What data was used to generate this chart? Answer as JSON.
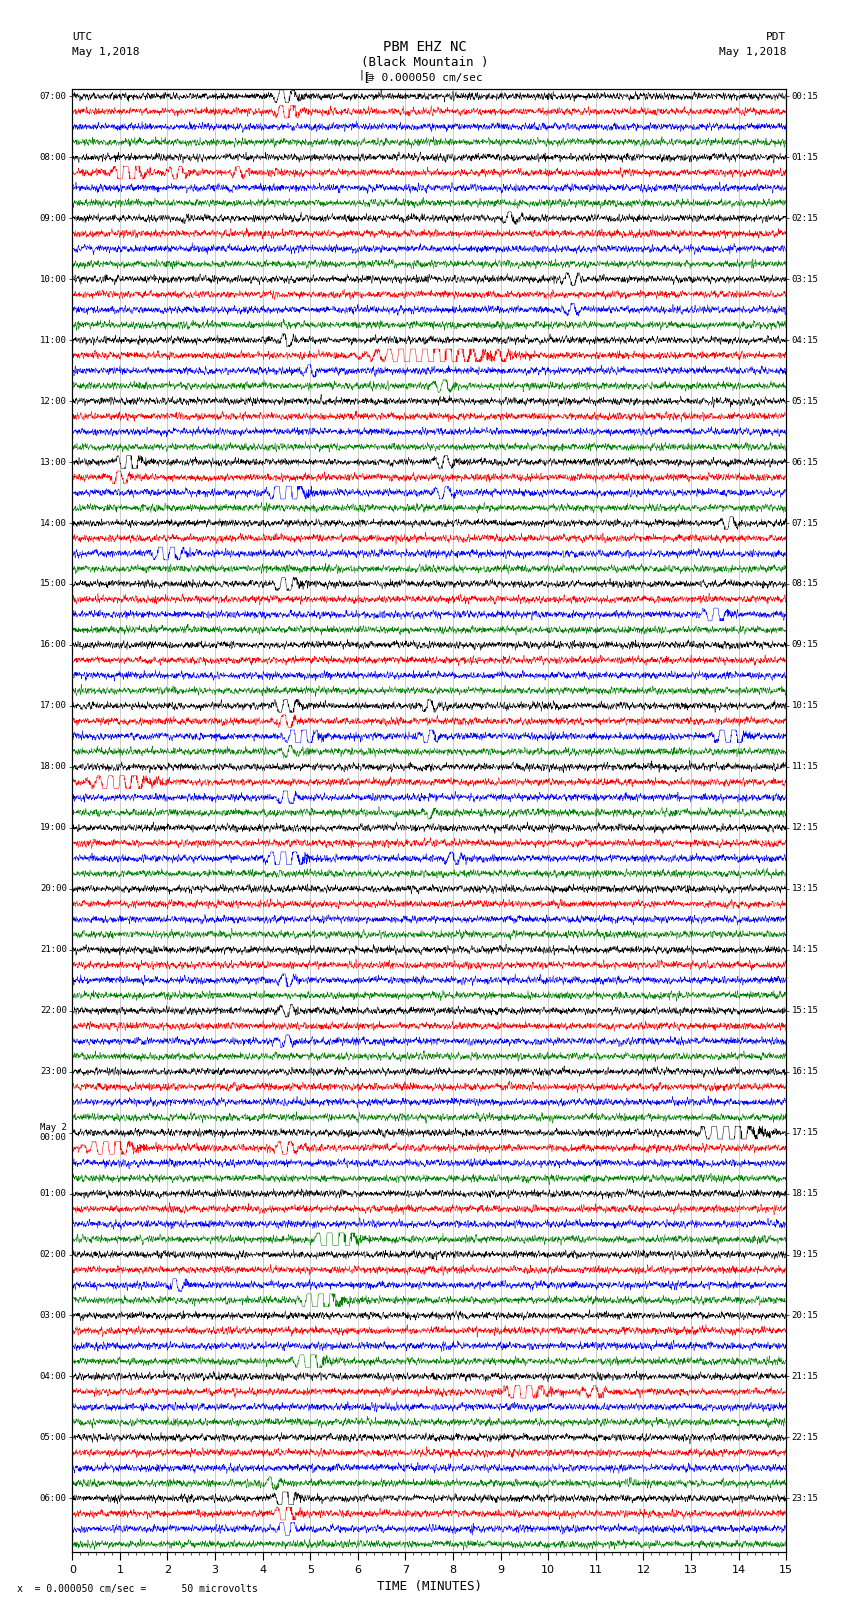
{
  "title_line1": "PBM EHZ NC",
  "title_line2": "(Black Mountain )",
  "scale_label": "= 0.000050 cm/sec",
  "left_label_top": "UTC",
  "left_label_date": "May 1,2018",
  "right_label_top": "PDT",
  "right_label_date": "May 1,2018",
  "bottom_label": "x  = 0.000050 cm/sec =      50 microvolts",
  "xlabel": "TIME (MINUTES)",
  "num_hour_rows": 24,
  "samples_per_row": 3000,
  "colors": [
    "black",
    "red",
    "blue",
    "green"
  ],
  "fig_width": 8.5,
  "fig_height": 16.13,
  "background_color": "white",
  "grid_color": "#999999",
  "left_time_labels": [
    "07:00",
    "08:00",
    "09:00",
    "10:00",
    "11:00",
    "12:00",
    "13:00",
    "14:00",
    "15:00",
    "16:00",
    "17:00",
    "18:00",
    "19:00",
    "20:00",
    "21:00",
    "22:00",
    "23:00",
    "May 2\n00:00",
    "01:00",
    "02:00",
    "03:00",
    "04:00",
    "05:00",
    "06:00"
  ],
  "right_time_labels": [
    "00:15",
    "01:15",
    "02:15",
    "03:15",
    "04:15",
    "05:15",
    "06:15",
    "07:15",
    "08:15",
    "09:15",
    "10:15",
    "11:15",
    "12:15",
    "13:15",
    "14:15",
    "15:15",
    "16:15",
    "17:15",
    "18:15",
    "19:15",
    "20:15",
    "21:15",
    "22:15",
    "23:15"
  ],
  "events": [
    {
      "hour": 4,
      "color_idx": 1,
      "minute": 9.5,
      "amplitude": 3.0,
      "duration": 0.6
    },
    {
      "hour": 4,
      "color_idx": 1,
      "minute": 11.0,
      "amplitude": 1.5,
      "duration": 0.4
    },
    {
      "hour": 5,
      "color_idx": 3,
      "minute": 4.2,
      "amplitude": 1.2,
      "duration": 0.3
    },
    {
      "hour": 6,
      "color_idx": 0,
      "minute": 4.5,
      "amplitude": 5.0,
      "duration": 0.3
    },
    {
      "hour": 6,
      "color_idx": 1,
      "minute": 4.5,
      "amplitude": 4.0,
      "duration": 0.3
    },
    {
      "hour": 6,
      "color_idx": 2,
      "minute": 4.5,
      "amplitude": 3.0,
      "duration": 0.3
    },
    {
      "hour": 7,
      "color_idx": 0,
      "minute": 4.5,
      "amplitude": 2.5,
      "duration": 0.4
    },
    {
      "hour": 7,
      "color_idx": 1,
      "minute": 4.5,
      "amplitude": 2.5,
      "duration": 0.4
    },
    {
      "hour": 8,
      "color_idx": 1,
      "minute": 1.2,
      "amplitude": 3.0,
      "duration": 0.5
    },
    {
      "hour": 8,
      "color_idx": 1,
      "minute": 2.2,
      "amplitude": 2.0,
      "duration": 0.3
    },
    {
      "hour": 8,
      "color_idx": 1,
      "minute": 3.5,
      "amplitude": 1.5,
      "duration": 0.2
    },
    {
      "hour": 9,
      "color_idx": 0,
      "minute": 9.2,
      "amplitude": 1.5,
      "duration": 0.3
    },
    {
      "hour": 11,
      "color_idx": 0,
      "minute": 4.5,
      "amplitude": 1.8,
      "duration": 0.2
    },
    {
      "hour": 11,
      "color_idx": 1,
      "minute": 7.5,
      "amplitude": 5.0,
      "duration": 1.5
    },
    {
      "hour": 11,
      "color_idx": 1,
      "minute": 9.0,
      "amplitude": 1.5,
      "duration": 0.3
    },
    {
      "hour": 11,
      "color_idx": 3,
      "minute": 7.8,
      "amplitude": 1.5,
      "duration": 0.4
    },
    {
      "hour": 10,
      "color_idx": 0,
      "minute": 10.5,
      "amplitude": 1.8,
      "duration": 0.3
    },
    {
      "hour": 10,
      "color_idx": 2,
      "minute": 10.5,
      "amplitude": 1.5,
      "duration": 0.3
    },
    {
      "hour": 11,
      "color_idx": 2,
      "minute": 5.0,
      "amplitude": 1.5,
      "duration": 0.3
    },
    {
      "hour": 13,
      "color_idx": 0,
      "minute": 1.2,
      "amplitude": 3.5,
      "duration": 0.4
    },
    {
      "hour": 13,
      "color_idx": 1,
      "minute": 1.0,
      "amplitude": 2.5,
      "duration": 0.3
    },
    {
      "hour": 13,
      "color_idx": 2,
      "minute": 4.5,
      "amplitude": 5.0,
      "duration": 0.5
    },
    {
      "hour": 13,
      "color_idx": 2,
      "minute": 7.8,
      "amplitude": 2.0,
      "duration": 0.3
    },
    {
      "hour": 13,
      "color_idx": 0,
      "minute": 7.8,
      "amplitude": 2.0,
      "duration": 0.3
    },
    {
      "hour": 14,
      "color_idx": 2,
      "minute": 2.0,
      "amplitude": 2.5,
      "duration": 0.5
    },
    {
      "hour": 14,
      "color_idx": 0,
      "minute": 13.8,
      "amplitude": 2.0,
      "duration": 0.3
    },
    {
      "hour": 15,
      "color_idx": 0,
      "minute": 4.5,
      "amplitude": 2.5,
      "duration": 0.4
    },
    {
      "hour": 15,
      "color_idx": 2,
      "minute": 13.5,
      "amplitude": 2.5,
      "duration": 0.4
    },
    {
      "hour": 17,
      "color_idx": 0,
      "minute": 4.5,
      "amplitude": 2.5,
      "duration": 0.4
    },
    {
      "hour": 17,
      "color_idx": 1,
      "minute": 4.5,
      "amplitude": 2.0,
      "duration": 0.3
    },
    {
      "hour": 17,
      "color_idx": 2,
      "minute": 4.8,
      "amplitude": 3.5,
      "duration": 0.5
    },
    {
      "hour": 17,
      "color_idx": 2,
      "minute": 7.5,
      "amplitude": 2.0,
      "duration": 0.3
    },
    {
      "hour": 17,
      "color_idx": 2,
      "minute": 13.8,
      "amplitude": 3.0,
      "duration": 0.5
    },
    {
      "hour": 17,
      "color_idx": 0,
      "minute": 7.5,
      "amplitude": 1.5,
      "duration": 0.3
    },
    {
      "hour": 18,
      "color_idx": 1,
      "minute": 1.0,
      "amplitude": 4.0,
      "duration": 0.8
    },
    {
      "hour": 18,
      "color_idx": 2,
      "minute": 4.5,
      "amplitude": 2.5,
      "duration": 0.3
    },
    {
      "hour": 19,
      "color_idx": 2,
      "minute": 4.5,
      "amplitude": 4.5,
      "duration": 0.5
    },
    {
      "hour": 19,
      "color_idx": 2,
      "minute": 8.0,
      "amplitude": 2.0,
      "duration": 0.3
    },
    {
      "hour": 17,
      "color_idx": 3,
      "minute": 4.5,
      "amplitude": 1.2,
      "duration": 0.3
    },
    {
      "hour": 18,
      "color_idx": 3,
      "minute": 7.5,
      "amplitude": 1.2,
      "duration": 0.3
    },
    {
      "hour": 0,
      "color_idx": 0,
      "minute": 13.8,
      "amplitude": 4.0,
      "duration": 0.8
    },
    {
      "hour": 0,
      "color_idx": 1,
      "minute": 0.8,
      "amplitude": 3.5,
      "duration": 0.7
    },
    {
      "hour": 0,
      "color_idx": 1,
      "minute": 4.5,
      "amplitude": 2.0,
      "duration": 0.4
    },
    {
      "hour": 1,
      "color_idx": 3,
      "minute": 5.5,
      "amplitude": 7.0,
      "duration": 0.5
    },
    {
      "hour": 2,
      "color_idx": 3,
      "minute": 5.2,
      "amplitude": 7.0,
      "duration": 0.5
    },
    {
      "hour": 2,
      "color_idx": 2,
      "minute": 2.2,
      "amplitude": 2.0,
      "duration": 0.3
    },
    {
      "hour": 3,
      "color_idx": 3,
      "minute": 5.0,
      "amplitude": 5.0,
      "duration": 0.4
    },
    {
      "hour": 21,
      "color_idx": 2,
      "minute": 4.5,
      "amplitude": 2.0,
      "duration": 0.3
    },
    {
      "hour": 22,
      "color_idx": 2,
      "minute": 4.5,
      "amplitude": 1.5,
      "duration": 0.3
    },
    {
      "hour": 22,
      "color_idx": 0,
      "minute": 4.5,
      "amplitude": 1.5,
      "duration": 0.3
    }
  ]
}
